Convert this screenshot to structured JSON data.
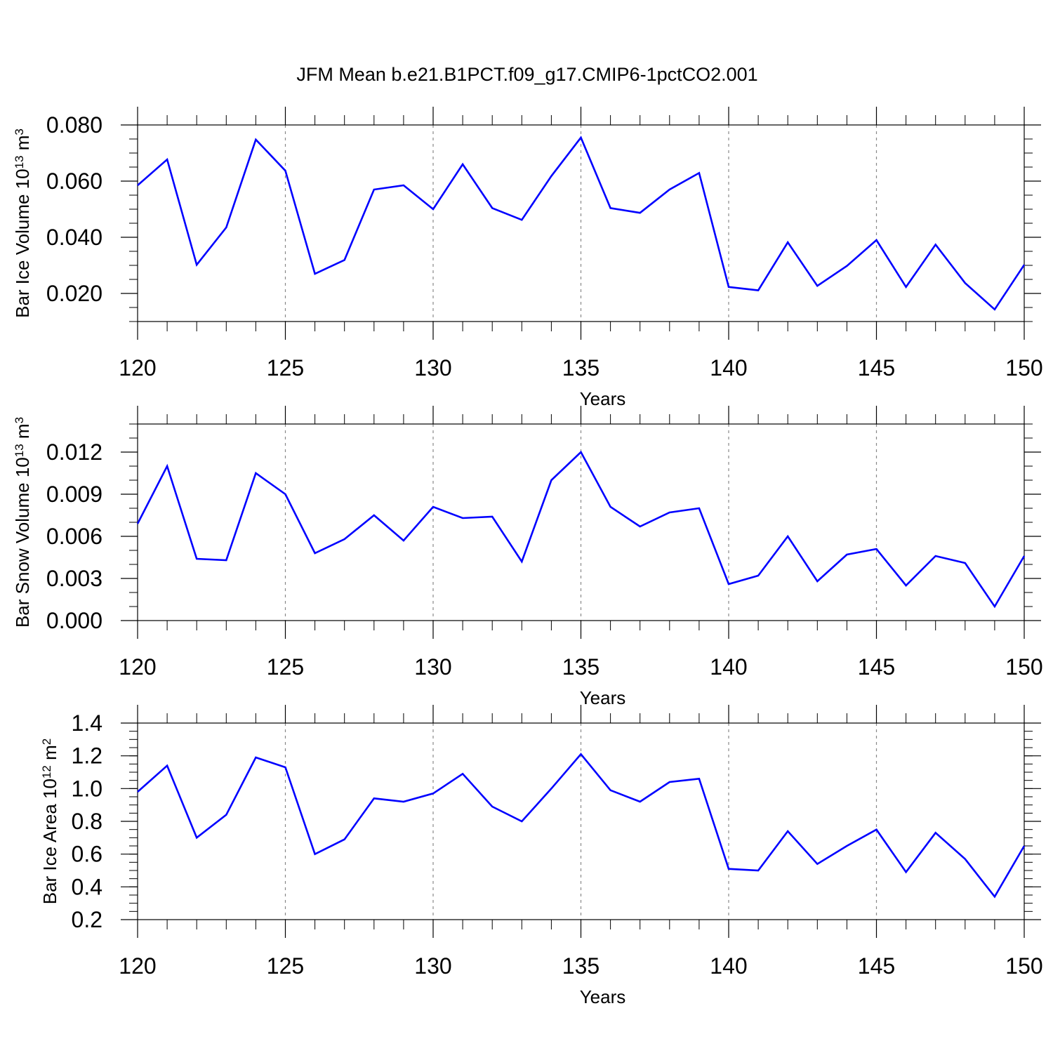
{
  "title": "JFM Mean b.e21.B1PCT.f09_g17.CMIP6-1pctCO2.001",
  "colors": {
    "series": "#0000ff",
    "grid": "#888888",
    "axis": "#000000"
  },
  "chart_data": [
    {
      "type": "line",
      "xlabel": "Years",
      "ylabel": {
        "prefix": "Bar Ice Volume 10",
        "exponent": "13",
        "unit": " m",
        "unit_exponent": "3"
      },
      "xlim": [
        120,
        150
      ],
      "ylim": [
        0.01,
        0.08
      ],
      "x_ticks": [
        "120",
        "125",
        "130",
        "135",
        "140",
        "145",
        "150"
      ],
      "y_ticks": [
        0.02,
        0.04,
        0.06,
        0.08
      ],
      "y_tick_labels": [
        "0.020",
        "0.040",
        "0.060",
        "0.080"
      ],
      "y_minor_step": 0.005,
      "grid": "dashed vertical at major x ticks",
      "x": [
        120,
        121,
        122,
        123,
        124,
        125,
        126,
        127,
        128,
        129,
        130,
        131,
        132,
        133,
        134,
        135,
        136,
        137,
        138,
        139,
        140,
        141,
        142,
        143,
        144,
        145,
        146,
        147,
        148,
        149,
        150
      ],
      "values": [
        0.0585,
        0.0677,
        0.0302,
        0.0435,
        0.0748,
        0.0637,
        0.027,
        0.0319,
        0.057,
        0.0585,
        0.05,
        0.066,
        0.0504,
        0.0462,
        0.0618,
        0.0755,
        0.0504,
        0.0487,
        0.057,
        0.0629,
        0.0223,
        0.0211,
        0.0382,
        0.0227,
        0.0298,
        0.039,
        0.0223,
        0.0374,
        0.0237,
        0.0143,
        0.0302
      ]
    },
    {
      "type": "line",
      "xlabel": "Years",
      "ylabel": {
        "prefix": "Bar Snow Volume 10",
        "exponent": "13",
        "unit": " m",
        "unit_exponent": "3"
      },
      "xlim": [
        120,
        150
      ],
      "ylim": [
        0.0,
        0.014
      ],
      "x_ticks": [
        "120",
        "125",
        "130",
        "135",
        "140",
        "145",
        "150"
      ],
      "y_ticks": [
        0.0,
        0.003,
        0.006,
        0.009,
        0.012
      ],
      "y_tick_labels": [
        "0.000",
        "0.003",
        "0.006",
        "0.009",
        "0.012"
      ],
      "y_minor_step": 0.001,
      "grid": "dashed vertical at major x ticks",
      "x": [
        120,
        121,
        122,
        123,
        124,
        125,
        126,
        127,
        128,
        129,
        130,
        131,
        132,
        133,
        134,
        135,
        136,
        137,
        138,
        139,
        140,
        141,
        142,
        143,
        144,
        145,
        146,
        147,
        148,
        149,
        150
      ],
      "values": [
        0.0069,
        0.011,
        0.0044,
        0.0043,
        0.0105,
        0.009,
        0.0048,
        0.0058,
        0.0075,
        0.0057,
        0.0081,
        0.0073,
        0.0074,
        0.0042,
        0.01,
        0.012,
        0.0081,
        0.0067,
        0.0077,
        0.008,
        0.0026,
        0.0032,
        0.006,
        0.0028,
        0.0047,
        0.0051,
        0.0025,
        0.0046,
        0.0041,
        0.001,
        0.0046
      ]
    },
    {
      "type": "line",
      "xlabel": "Years",
      "ylabel": {
        "prefix": "Bar Ice Area 10",
        "exponent": "12",
        "unit": " m",
        "unit_exponent": "2"
      },
      "xlim": [
        120,
        150
      ],
      "ylim": [
        0.2,
        1.4
      ],
      "x_ticks": [
        "120",
        "125",
        "130",
        "135",
        "140",
        "145",
        "150"
      ],
      "y_ticks": [
        0.2,
        0.4,
        0.6,
        0.8,
        1.0,
        1.2,
        1.4
      ],
      "y_tick_labels": [
        "0.2",
        "0.4",
        "0.6",
        "0.8",
        "1.0",
        "1.2",
        "1.4"
      ],
      "y_minor_step": 0.05,
      "grid": "dashed vertical at major x ticks",
      "x": [
        120,
        121,
        122,
        123,
        124,
        125,
        126,
        127,
        128,
        129,
        130,
        131,
        132,
        133,
        134,
        135,
        136,
        137,
        138,
        139,
        140,
        141,
        142,
        143,
        144,
        145,
        146,
        147,
        148,
        149,
        150
      ],
      "values": [
        0.98,
        1.14,
        0.7,
        0.84,
        1.19,
        1.13,
        0.6,
        0.69,
        0.94,
        0.92,
        0.97,
        1.09,
        0.89,
        0.8,
        1.0,
        1.21,
        0.99,
        0.92,
        1.04,
        1.06,
        0.51,
        0.5,
        0.74,
        0.54,
        0.65,
        0.75,
        0.49,
        0.73,
        0.57,
        0.34,
        0.65
      ]
    }
  ]
}
